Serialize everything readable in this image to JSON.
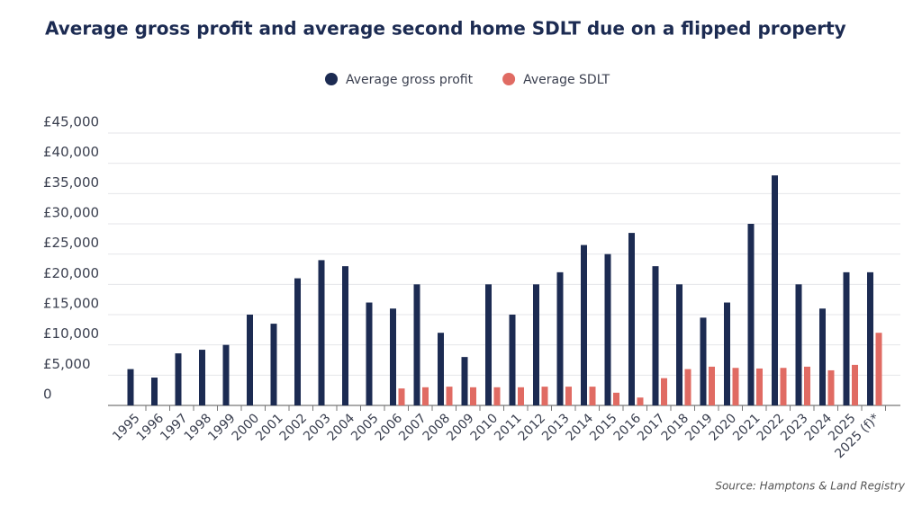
{
  "chart_data": {
    "type": "bar",
    "title": "Average gross profit and average second home SDLT due on a flipped property",
    "source": "Source: Hamptons & Land Registry",
    "categories": [
      "1995",
      "1996",
      "1997",
      "1998",
      "1999",
      "2000",
      "2001",
      "2002",
      "2003",
      "2004",
      "2005",
      "2006",
      "2007",
      "2008",
      "2009",
      "2010",
      "2011",
      "2012",
      "2013",
      "2014",
      "2015",
      "2016",
      "2017",
      "2018",
      "2019",
      "2020",
      "2021",
      "2022",
      "2023",
      "2024",
      "2025",
      "2025 (f)*"
    ],
    "series": [
      {
        "name": "Average gross profit",
        "color": "#1c2b52",
        "values": [
          6000,
          4600,
          8600,
          9200,
          10000,
          15000,
          13500,
          21000,
          24000,
          23000,
          17000,
          16000,
          20000,
          12000,
          8000,
          20000,
          15000,
          20000,
          22000,
          26500,
          25000,
          28500,
          23000,
          20000,
          14500,
          17000,
          30000,
          38000,
          20000,
          16000,
          22000,
          22000
        ]
      },
      {
        "name": "Average SDLT",
        "color": "#e06b63",
        "values": [
          null,
          null,
          null,
          null,
          null,
          null,
          null,
          null,
          null,
          null,
          null,
          2800,
          3000,
          3100,
          3000,
          3000,
          3000,
          3100,
          3100,
          3100,
          2100,
          1300,
          4500,
          6000,
          6400,
          6200,
          6100,
          6200,
          6400,
          5800,
          6700,
          12000
        ]
      }
    ],
    "ylim": [
      0,
      45000
    ],
    "yticks": [
      0,
      {
        "value": 5000,
        "label": "£5,000"
      },
      {
        "value": 10000,
        "label": "£10,000"
      },
      {
        "value": 15000,
        "label": "£15,000"
      },
      {
        "value": 20000,
        "label": "£20,000"
      },
      {
        "value": 25000,
        "label": "£25,000"
      },
      {
        "value": 30000,
        "label": "£30,000"
      },
      {
        "value": 35000,
        "label": "£35,000"
      },
      {
        "value": 40000,
        "label": "£40,000"
      },
      {
        "value": 45000,
        "label": "£45,000"
      }
    ],
    "grid": true
  }
}
